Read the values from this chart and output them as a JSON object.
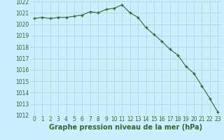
{
  "x": [
    0,
    1,
    2,
    3,
    4,
    5,
    6,
    7,
    8,
    9,
    10,
    11,
    12,
    13,
    14,
    15,
    16,
    17,
    18,
    19,
    20,
    21,
    22,
    23
  ],
  "y": [
    1020.5,
    1020.6,
    1020.5,
    1020.6,
    1020.6,
    1020.7,
    1020.8,
    1021.1,
    1021.0,
    1021.3,
    1021.4,
    1021.7,
    1021.0,
    1020.6,
    1019.7,
    1019.1,
    1018.5,
    1017.8,
    1017.3,
    1016.3,
    1015.7,
    1014.6,
    1013.5,
    1012.3
  ],
  "ylim": [
    1012,
    1022
  ],
  "xlim": [
    -0.5,
    23.5
  ],
  "yticks": [
    1012,
    1013,
    1014,
    1015,
    1016,
    1017,
    1018,
    1019,
    1020,
    1021,
    1022
  ],
  "xticks": [
    0,
    1,
    2,
    3,
    4,
    5,
    6,
    7,
    8,
    9,
    10,
    11,
    12,
    13,
    14,
    15,
    16,
    17,
    18,
    19,
    20,
    21,
    22,
    23
  ],
  "line_color": "#2d6a2d",
  "marker": "+",
  "bg_color": "#cceeff",
  "grid_color": "#aad4d4",
  "title": "Graphe pression niveau de la mer (hPa)",
  "title_color": "#2d6a2d",
  "tick_color": "#2d6a2d",
  "label_fontsize": 5.5,
  "title_fontsize": 7.0
}
